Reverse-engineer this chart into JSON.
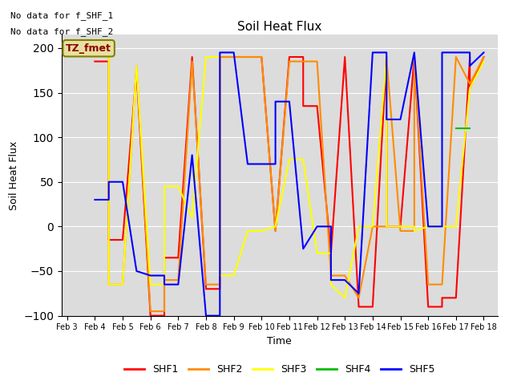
{
  "title": "Soil Heat Flux",
  "xlabel": "Time",
  "ylabel": "Soil Heat Flux",
  "annotations": [
    "No data for f_SHF_1",
    "No data for f_SHF_2"
  ],
  "legend_label": "TZ_fmet",
  "ylim": [
    -100,
    215
  ],
  "yticks": [
    -100,
    -50,
    0,
    50,
    100,
    150,
    200
  ],
  "background_color": "#dcdcdc",
  "series": {
    "SHF1": {
      "color": "#ff0000",
      "x": [
        3.5,
        3.5,
        4.0,
        4.5,
        4.5,
        5.0,
        5.5,
        5.5,
        6.0,
        6.5,
        6.5,
        7.0,
        7.5,
        7.5,
        8.0,
        8.5,
        8.5,
        9.0,
        9.5,
        10.0,
        10.5,
        10.5,
        11.0,
        11.5,
        11.5,
        12.0,
        12.5,
        12.5,
        13.0,
        13.5,
        14.0,
        14.5,
        14.5,
        15.0,
        15.5,
        15.5,
        16.0,
        16.5,
        16.5,
        17.0,
        17.5,
        17.5,
        18.0
      ],
      "y": [
        null,
        null,
        185,
        185,
        -15,
        -15,
        175,
        175,
        -100,
        -100,
        -35,
        -35,
        190,
        190,
        -70,
        -70,
        190,
        190,
        190,
        190,
        -5,
        -5,
        190,
        190,
        135,
        135,
        -30,
        -30,
        190,
        -90,
        -90,
        190,
        0,
        0,
        190,
        190,
        -90,
        -90,
        -80,
        -80,
        190,
        155,
        190
      ]
    },
    "SHF2": {
      "color": "#ff8c00",
      "x": [
        3.5,
        3.5,
        4.0,
        4.5,
        4.5,
        5.0,
        5.5,
        5.5,
        6.0,
        6.5,
        6.5,
        7.0,
        7.5,
        7.5,
        8.0,
        8.5,
        8.5,
        9.0,
        9.5,
        10.0,
        10.5,
        10.5,
        11.0,
        11.5,
        11.5,
        12.0,
        12.5,
        12.5,
        13.0,
        13.5,
        14.0,
        14.5,
        14.5,
        15.0,
        15.5,
        15.5,
        16.0,
        16.5,
        16.5,
        17.0,
        17.5,
        17.5,
        18.0
      ],
      "y": [
        null,
        null,
        195,
        195,
        -65,
        -65,
        180,
        180,
        -95,
        -95,
        -60,
        -60,
        185,
        185,
        -65,
        -65,
        190,
        190,
        190,
        190,
        -5,
        -5,
        185,
        185,
        185,
        185,
        -55,
        -55,
        -55,
        -80,
        0,
        0,
        190,
        -5,
        -5,
        190,
        -65,
        -65,
        -65,
        190,
        160,
        160,
        190
      ]
    },
    "SHF3": {
      "color": "#ffff00",
      "x": [
        3.5,
        3.5,
        4.0,
        4.5,
        4.5,
        5.0,
        5.5,
        5.5,
        6.0,
        6.5,
        6.5,
        7.0,
        7.5,
        7.5,
        8.0,
        8.5,
        8.5,
        9.0,
        9.5,
        10.0,
        10.5,
        10.5,
        11.0,
        11.5,
        11.5,
        12.0,
        12.5,
        12.5,
        13.0,
        13.5,
        14.0,
        14.5,
        14.5,
        15.0,
        15.5,
        15.5,
        16.0,
        16.5,
        16.5,
        17.0,
        17.5,
        17.5,
        18.0
      ],
      "y": [
        null,
        null,
        195,
        195,
        -65,
        -65,
        180,
        180,
        -65,
        -65,
        45,
        45,
        10,
        10,
        190,
        190,
        -55,
        -55,
        -5,
        -5,
        0,
        0,
        75,
        75,
        75,
        -30,
        -30,
        -65,
        -80,
        0,
        0,
        190,
        0,
        0,
        0,
        -5,
        0,
        0,
        0,
        0,
        155,
        155,
        185
      ]
    },
    "SHF4": {
      "color": "#00bb00",
      "x": [
        17.0,
        17.5
      ],
      "y": [
        110,
        110
      ]
    },
    "SHF5": {
      "color": "#0000ff",
      "x": [
        3.5,
        4.0,
        4.5,
        4.5,
        5.0,
        5.5,
        5.5,
        6.0,
        6.5,
        6.5,
        7.0,
        7.5,
        7.5,
        8.0,
        8.5,
        8.5,
        9.0,
        9.5,
        9.5,
        10.0,
        10.5,
        10.5,
        11.0,
        11.5,
        11.5,
        12.0,
        12.5,
        12.5,
        13.0,
        13.5,
        13.5,
        14.0,
        14.5,
        14.5,
        15.0,
        15.5,
        15.5,
        16.0,
        16.5,
        16.5,
        17.0,
        17.5,
        17.5,
        18.0
      ],
      "y": [
        null,
        30,
        30,
        50,
        50,
        -50,
        -50,
        -55,
        -55,
        -65,
        -65,
        80,
        80,
        -100,
        -100,
        195,
        195,
        70,
        70,
        70,
        70,
        140,
        140,
        -25,
        -25,
        0,
        0,
        -60,
        -60,
        -75,
        -75,
        195,
        195,
        120,
        120,
        195,
        195,
        0,
        0,
        195,
        195,
        195,
        180,
        195
      ]
    }
  },
  "xtick_labels": [
    "Feb 3",
    "Feb 4",
    "Feb 5",
    "Feb 6",
    "Feb 7",
    "Feb 8",
    "Feb 9",
    "Feb 10",
    "Feb 11",
    "Feb 12",
    "Feb 13",
    "Feb 14",
    "Feb 15",
    "Feb 16",
    "Feb 17",
    "Feb 18"
  ],
  "xtick_positions": [
    3,
    4,
    5,
    6,
    7,
    8,
    9,
    10,
    11,
    12,
    13,
    14,
    15,
    16,
    17,
    18
  ]
}
